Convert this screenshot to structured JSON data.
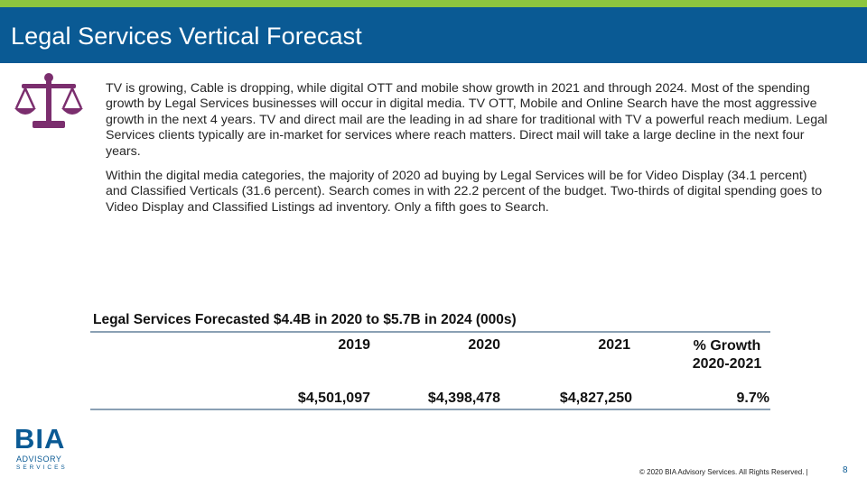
{
  "header": {
    "title": "Legal Services Vertical Forecast",
    "colors": {
      "title_bar": "#0a5a94",
      "top_stripe": "#8dc63f",
      "icon": "#7b2e6e"
    }
  },
  "icon": "scales-of-justice-icon",
  "body": {
    "paragraph1": "TV is growing, Cable is dropping, while digital OTT and mobile show growth in 2021 and through 2024. Most of the spending growth by Legal Services businesses will occur in digital media. TV OTT, Mobile and Online Search have the most aggressive growth in the next 4 years. TV and direct mail are the leading in ad share for traditional with TV a powerful reach medium. Legal Services clients typically are in-market for services where reach matters.  Direct mail will take a large decline in the next four years.",
    "paragraph2": "Within the digital media categories, the majority of 2020 ad buying by Legal Services will be for Video Display (34.1 percent) and Classified Verticals (31.6 percent). Search comes in with 22.2 percent of the budget. Two-thirds of digital spending goes to Video Display and Classified Listings ad inventory. Only a fifth goes to Search."
  },
  "table": {
    "title": "Legal Services Forecasted $4.4B in 2020 to $5.7B in 2024 (000s)",
    "headers": [
      "2019",
      "2020",
      "2021",
      "% Growth",
      "2020-2021"
    ],
    "row": [
      "$4,501,097",
      "$4,398,478",
      "$4,827,250",
      "9.7%"
    ]
  },
  "logo": {
    "name": "BIA",
    "line1": "ADVISORY",
    "line2": "SERVICES"
  },
  "footer": {
    "copyright": "© 2020 BIA Advisory Services. All Rights Reserved.  |",
    "page_number": "8"
  }
}
